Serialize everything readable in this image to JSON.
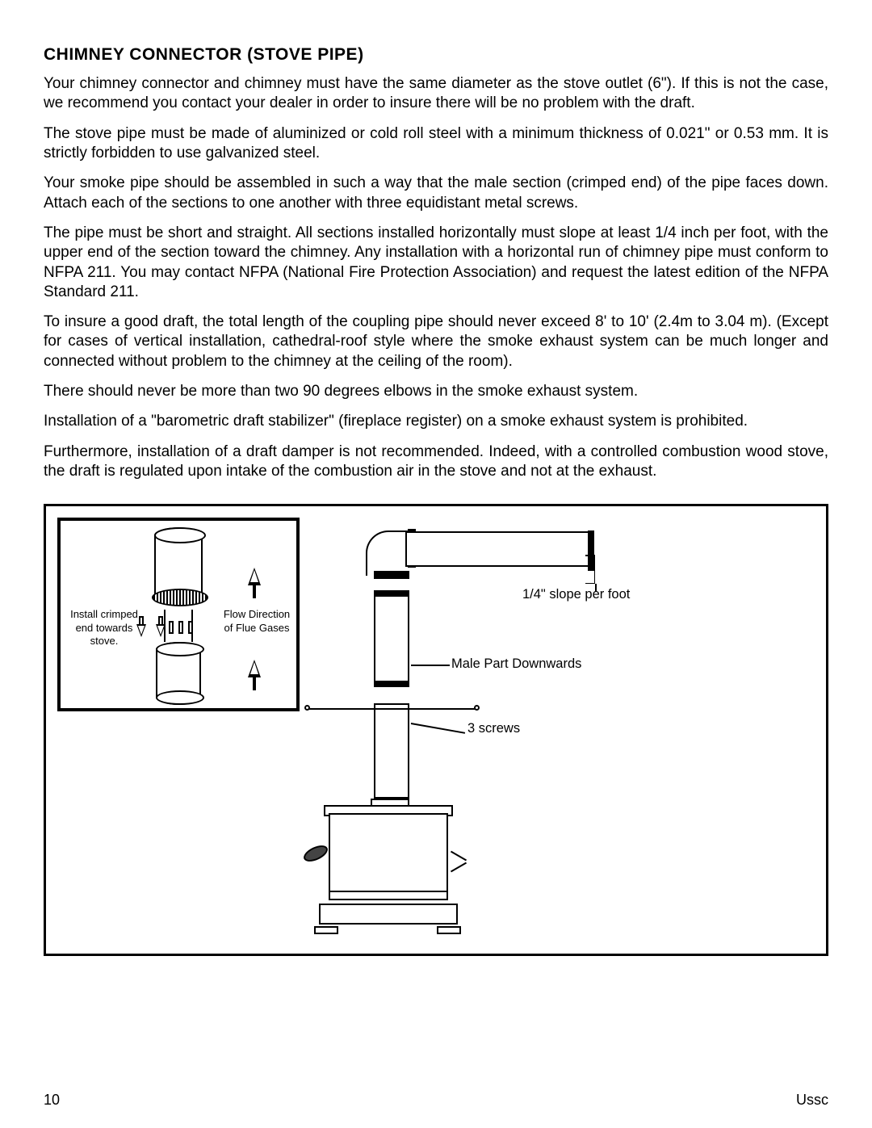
{
  "heading": "CHIMNEY CONNECTOR (STOVE PIPE)",
  "paragraphs": {
    "p1": "Your chimney connector and chimney must have the same diameter as the stove outlet (6\"). If this is not the case, we recommend you contact your dealer in order to insure there will be no problem with the draft.",
    "p2": "The stove pipe must be made of aluminized or cold roll steel with a minimum thickness of 0.021\" or 0.53 mm. It is strictly forbidden to use galvanized steel.",
    "p3": "Your smoke pipe should be assembled in such a way that the male section (crimped end) of the pipe faces down. Attach each of the sections to one another with three equidistant metal screws.",
    "p4": "The pipe must be short and straight. All sections installed horizontally must slope at least 1/4 inch per foot, with the upper end of the section toward the chimney. Any installation with a horizontal run of chimney pipe must conform to NFPA 211. You may contact NFPA (National Fire Protection Association) and request the latest edition of the NFPA Standard 211.",
    "p5": "To insure a good draft, the total length of the coupling pipe should never exceed 8' to 10' (2.4m to 3.04 m). (Except for cases of vertical installation, cathedral-roof style where the smoke exhaust system can be much longer and connected without problem to the chimney at the ceiling of the room).",
    "p6": "There should never be more than two 90 degrees elbows in the smoke exhaust system.",
    "p7": "Installation of a \"barometric draft stabilizer\" (fireplace register) on a smoke exhaust system is prohibited.",
    "p8": "Furthermore, installation of a draft damper is not recommended. Indeed, with a controlled combustion wood stove, the draft is regulated upon intake of the combustion air in the stove and not at the exhaust."
  },
  "diagram": {
    "inset": {
      "left_label": "Install crimped end towards stove.",
      "right_label": "Flow Direction of Flue Gases"
    },
    "labels": {
      "slope": "1/4\" slope per foot",
      "male": "Male Part Downwards",
      "screws": "3 screws"
    }
  },
  "footer": {
    "page": "10",
    "brand": "Ussc"
  }
}
